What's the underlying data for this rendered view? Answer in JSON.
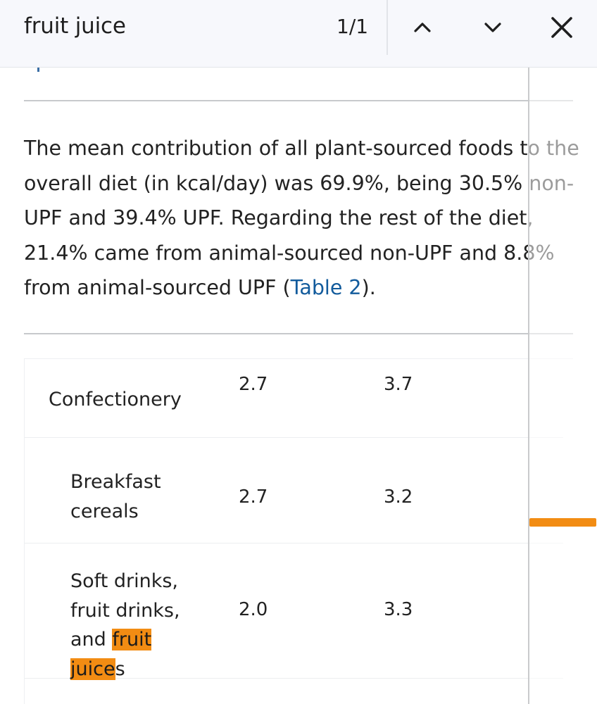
{
  "find_bar": {
    "query": "fruit juice",
    "match_count": "1/1",
    "prev_icon": "chevron-up-icon",
    "next_icon": "chevron-down-icon",
    "close_icon": "close-icon"
  },
  "article": {
    "paragraph_before_link": "The mean contribution of all plant-sourced foods to the overall diet (in kcal/day) was 69.9%, being 30.5% non-UPF and 39.4% UPF. Regarding the rest of the diet, 21.4% came from animal-sourced non-UPF and 8.8% from animal-sourced UPF (",
    "link_text": "Table 2",
    "paragraph_after_link": ")."
  },
  "table": {
    "rows": [
      {
        "label": "Confectionery",
        "value_a": "2.7",
        "value_b": "3.7"
      },
      {
        "label": "Breakfast cereals",
        "value_a": "2.7",
        "value_b": "3.2"
      },
      {
        "label_prefix": "Soft drinks, fruit drinks, and ",
        "label_match": "fruit juice",
        "label_suffix": "s",
        "value_a": "2.0",
        "value_b": "3.3"
      }
    ]
  },
  "colors": {
    "highlight": "#f28c13",
    "link": "#125b9c",
    "findbar_bg": "#f7f8fc"
  }
}
